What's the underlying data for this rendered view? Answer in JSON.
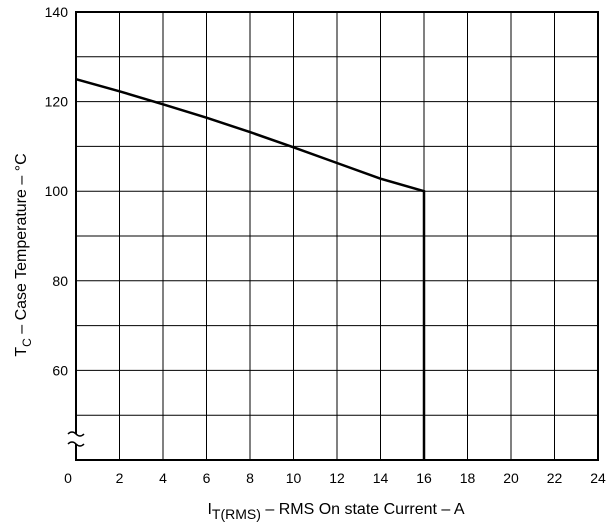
{
  "chart_data": {
    "type": "line",
    "title": "",
    "xlabel_main": "I",
    "xlabel_sub": "T(RMS)",
    "xlabel_rest": " – RMS On state Current – A",
    "ylabel_main": "T",
    "ylabel_sub": "C",
    "ylabel_rest": " – Case Temperature – °C",
    "xlim": [
      0,
      24
    ],
    "ylim": [
      40,
      140
    ],
    "x_ticks": [
      0,
      2,
      4,
      6,
      8,
      10,
      12,
      14,
      16,
      18,
      20,
      22,
      24
    ],
    "y_ticks": [
      60,
      80,
      100,
      120,
      140
    ],
    "grid": true,
    "axis_break": "y",
    "series": [
      {
        "points": [
          {
            "x": 0,
            "y": 125
          },
          {
            "x": 2,
            "y": 122.3
          },
          {
            "x": 4,
            "y": 119.4
          },
          {
            "x": 6,
            "y": 116.4
          },
          {
            "x": 8,
            "y": 113.2
          },
          {
            "x": 10,
            "y": 109.8
          },
          {
            "x": 12,
            "y": 106.3
          },
          {
            "x": 14,
            "y": 102.8
          },
          {
            "x": 16,
            "y": 100
          },
          {
            "x": 16,
            "y": 40
          }
        ]
      }
    ]
  }
}
